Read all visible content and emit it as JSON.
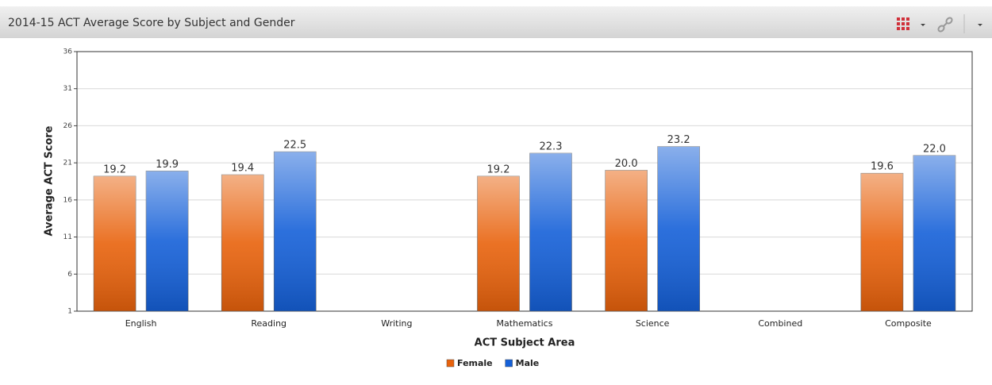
{
  "chart_data": {
    "type": "bar",
    "title": "2014-15 ACT Average Score by Subject and Gender",
    "x_label": "ACT Subject Area",
    "y_label": "Average ACT Score",
    "categories": [
      "English",
      "Reading",
      "Writing",
      "Mathematics",
      "Science",
      "Combined",
      "Composite"
    ],
    "series": [
      {
        "name": "Female",
        "color": "#e8620c",
        "values": [
          19.2,
          19.4,
          null,
          19.2,
          20.0,
          null,
          19.6
        ],
        "value_labels": [
          "19.2",
          "19.4",
          null,
          "19.2",
          "20.0",
          null,
          "19.6"
        ]
      },
      {
        "name": "Male",
        "color": "#1560d8",
        "values": [
          19.9,
          22.5,
          null,
          22.3,
          23.2,
          null,
          22.0
        ],
        "value_labels": [
          "19.9",
          "22.5",
          null,
          "22.3",
          "23.2",
          null,
          "22.0"
        ]
      }
    ],
    "ylim": [
      1,
      36
    ],
    "yticks": [
      1,
      6,
      11,
      16,
      21,
      26,
      31,
      36
    ],
    "grid": true,
    "legend": "bottom"
  }
}
